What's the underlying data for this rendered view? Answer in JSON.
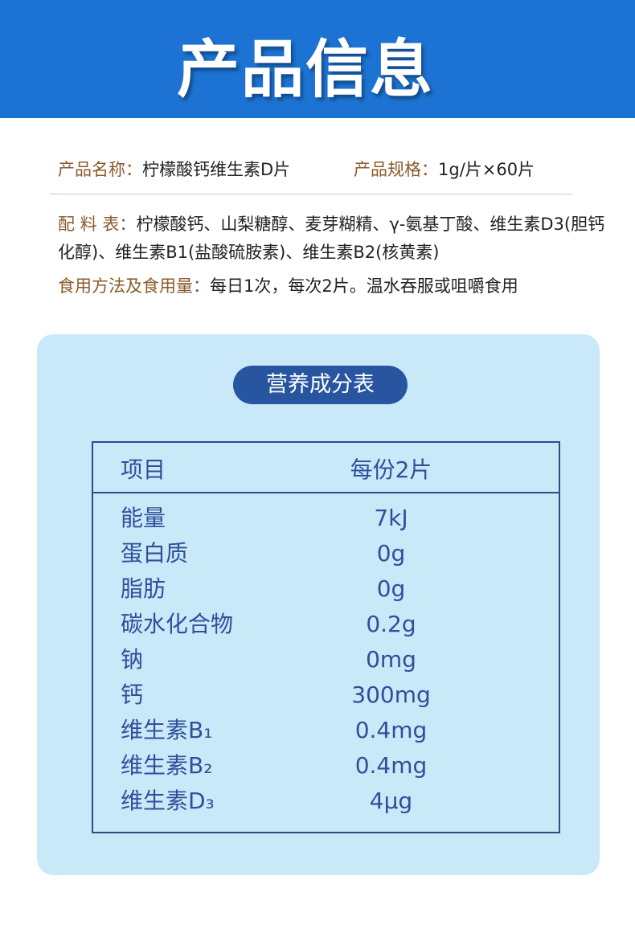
{
  "header": {
    "title": "产品信息"
  },
  "info": {
    "name_label": "产品名称：",
    "name": "柠檬酸钙维生素D片",
    "spec_label": "产品规格：",
    "spec": "1g/片×60片",
    "ingredients_label": "配 料 表：",
    "ingredients": "柠檬酸钙、山梨糖醇、麦芽糊精、γ-氨基丁酸、维生素D3(胆钙化醇)、维生素B1(盐酸硫胺素)、维生素B2(核黄素)",
    "usage_label": "食用方法及食用量：",
    "usage": "每日1次，每次2片。温水吞服或咀嚼食用"
  },
  "nutrition": {
    "title": "营养成分表",
    "header": [
      "项目",
      "每份2片"
    ],
    "rows": [
      [
        "能量",
        "7kJ"
      ],
      [
        "蛋白质",
        "0g"
      ],
      [
        "脂肪",
        "0g"
      ],
      [
        "碳水化合物",
        "0.2g"
      ],
      [
        "钠",
        "0mg"
      ],
      [
        "钙",
        "300mg"
      ],
      [
        "维生素B₁",
        "0.4mg"
      ],
      [
        "维生素B₂",
        "0.4mg"
      ],
      [
        "维生素D₃",
        "4μg"
      ]
    ]
  }
}
